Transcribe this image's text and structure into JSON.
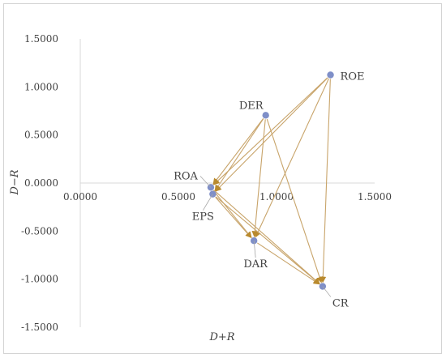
{
  "chart_data": {
    "type": "scatter",
    "title": "",
    "xlabel": "D+R",
    "ylabel": "D−R",
    "xlim": [
      0,
      1.5
    ],
    "ylim": [
      -1.5,
      1.5
    ],
    "x_ticks": [
      "0.0000",
      "0.5000",
      "1.0000",
      "1.5000"
    ],
    "y_ticks": [
      "1.5000",
      "1.0000",
      "0.5000",
      "0.0000",
      "-0.5000",
      "-1.0000",
      "-1.5000"
    ],
    "grid": false,
    "point_color": "#7f8fc8",
    "arrow_color": "#c8a46a",
    "arrowhead_color": "#b98a2e",
    "points": [
      {
        "label": "ROE",
        "x": 1.275,
        "y": 1.125
      },
      {
        "label": "DER",
        "x": 0.945,
        "y": 0.705
      },
      {
        "label": "ROA",
        "x": 0.665,
        "y": -0.045
      },
      {
        "label": "EPS",
        "x": 0.675,
        "y": -0.115
      },
      {
        "label": "DAR",
        "x": 0.885,
        "y": -0.6
      },
      {
        "label": "CR",
        "x": 1.235,
        "y": -1.075
      }
    ],
    "arrows": [
      {
        "from": "ROE",
        "to": "ROA"
      },
      {
        "from": "ROE",
        "to": "EPS"
      },
      {
        "from": "ROE",
        "to": "DAR"
      },
      {
        "from": "ROE",
        "to": "CR"
      },
      {
        "from": "DER",
        "to": "ROA"
      },
      {
        "from": "DER",
        "to": "EPS"
      },
      {
        "from": "DER",
        "to": "DAR"
      },
      {
        "from": "DER",
        "to": "CR"
      },
      {
        "from": "ROA",
        "to": "DAR"
      },
      {
        "from": "ROA",
        "to": "CR"
      },
      {
        "from": "EPS",
        "to": "DAR"
      },
      {
        "from": "EPS",
        "to": "CR"
      },
      {
        "from": "DAR",
        "to": "CR"
      }
    ]
  }
}
